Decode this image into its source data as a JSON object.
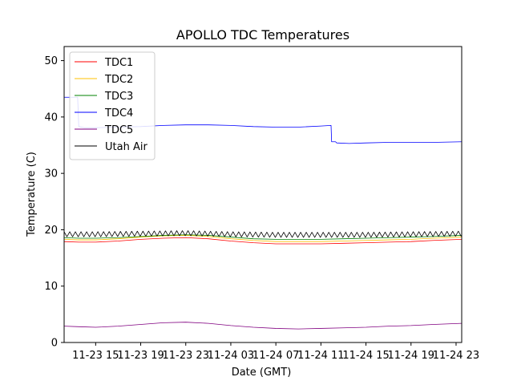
{
  "chart_data": {
    "type": "line",
    "title": "APOLLO TDC Temperatures",
    "xlabel": "Date (GMT)",
    "ylabel": "Temperature (C)",
    "xlim": [
      12.2,
      47.5
    ],
    "ylim": [
      0,
      52.5
    ],
    "x_unit": "hours since 2020-11-23 00:00 GMT",
    "x_ticks": [
      {
        "x": 15,
        "label": "11-23 15"
      },
      {
        "x": 19,
        "label": "11-23 19"
      },
      {
        "x": 23,
        "label": "11-23 23"
      },
      {
        "x": 27,
        "label": "11-24 03"
      },
      {
        "x": 31,
        "label": "11-24 07"
      },
      {
        "x": 35,
        "label": "11-24 11"
      },
      {
        "x": 39,
        "label": "11-24 15"
      },
      {
        "x": 43,
        "label": "11-24 19"
      },
      {
        "x": 47,
        "label": "11-24 23"
      }
    ],
    "y_ticks": [
      {
        "y": 0,
        "label": "0"
      },
      {
        "y": 10,
        "label": "10"
      },
      {
        "y": 20,
        "label": "20"
      },
      {
        "y": 30,
        "label": "30"
      },
      {
        "y": 40,
        "label": "40"
      },
      {
        "y": 50,
        "label": "50"
      }
    ],
    "grid": false,
    "legend_position": "top-left",
    "series": [
      {
        "name": "TDC1",
        "color": "#ff0000",
        "x": [
          12.2,
          13.5,
          15,
          17,
          19,
          21,
          23,
          25,
          27,
          29,
          31,
          33,
          35,
          37,
          39,
          41,
          43,
          45,
          47.5
        ],
        "y": [
          17.9,
          17.8,
          17.8,
          18.0,
          18.3,
          18.5,
          18.6,
          18.4,
          18.0,
          17.7,
          17.5,
          17.5,
          17.5,
          17.6,
          17.7,
          17.8,
          17.9,
          18.1,
          18.3
        ]
      },
      {
        "name": "TDC2",
        "color": "#ffc000",
        "x": [
          12.2,
          13.5,
          15,
          17,
          19,
          21,
          23,
          25,
          27,
          29,
          31,
          33,
          35,
          37,
          39,
          41,
          43,
          45,
          47.5
        ],
        "y": [
          18.3,
          18.2,
          18.2,
          18.4,
          18.7,
          18.9,
          19.0,
          18.8,
          18.4,
          18.1,
          17.9,
          17.9,
          17.9,
          18.0,
          18.1,
          18.2,
          18.3,
          18.5,
          18.7
        ]
      },
      {
        "name": "TDC3",
        "color": "#008000",
        "x": [
          12.2,
          13.5,
          15,
          17,
          19,
          21,
          23,
          25,
          27,
          29,
          31,
          33,
          35,
          37,
          39,
          41,
          43,
          45,
          47.5
        ],
        "y": [
          18.6,
          18.5,
          18.5,
          18.6,
          18.8,
          19.0,
          19.1,
          19.0,
          18.7,
          18.4,
          18.3,
          18.3,
          18.3,
          18.4,
          18.5,
          18.6,
          18.7,
          18.8,
          19.0
        ]
      },
      {
        "name": "TDC4",
        "color": "#0000ff",
        "x": [
          12.2,
          13.4,
          13.5,
          14,
          15,
          17,
          19,
          21,
          23,
          25,
          27,
          29,
          31,
          33,
          35,
          35.9,
          35.95,
          36.3,
          36.4,
          37.5,
          39,
          41,
          43,
          45,
          47.5
        ],
        "y": [
          43.5,
          43.5,
          38.3,
          38.1,
          38.1,
          38.2,
          38.3,
          38.5,
          38.6,
          38.6,
          38.5,
          38.3,
          38.2,
          38.2,
          38.4,
          38.5,
          35.6,
          35.6,
          35.4,
          35.3,
          35.4,
          35.5,
          35.5,
          35.5,
          35.6
        ]
      },
      {
        "name": "TDC5",
        "color": "#800080",
        "x": [
          12.2,
          13.5,
          15,
          17,
          19,
          21,
          23,
          25,
          27,
          29,
          31,
          33,
          35,
          37,
          39,
          41,
          43,
          45,
          47.5
        ],
        "y": [
          2.9,
          2.8,
          2.7,
          2.9,
          3.2,
          3.5,
          3.6,
          3.4,
          3.0,
          2.7,
          2.5,
          2.4,
          2.5,
          2.6,
          2.7,
          2.9,
          3.0,
          3.2,
          3.4
        ]
      },
      {
        "name": "Utah Air",
        "color": "#000000",
        "pattern": "sawtooth",
        "period_hours": 0.5,
        "amplitude": 0.45,
        "x": [
          12.2,
          15,
          19,
          23,
          27,
          31,
          35,
          39,
          43,
          47.5
        ],
        "y": [
          19.2,
          19.2,
          19.3,
          19.4,
          19.2,
          19.1,
          19.1,
          19.1,
          19.2,
          19.3
        ]
      }
    ]
  }
}
